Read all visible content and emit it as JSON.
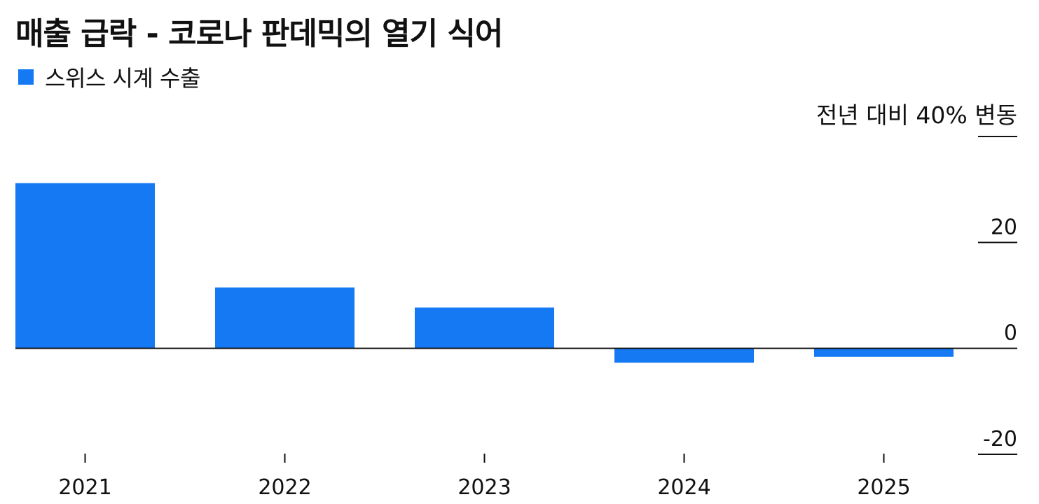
{
  "chart_data": {
    "type": "bar",
    "title": "매출 급락 - 코로나 판데믹의 열기 식어",
    "ylabel": "전년 대비 40% 변동",
    "categories": [
      "2021",
      "2022",
      "2023",
      "2024",
      "2025"
    ],
    "series": [
      {
        "name": "스위스 시계 수출",
        "values": [
          31.2,
          11.5,
          7.7,
          -2.7,
          -1.6
        ],
        "color": "#1479f2"
      }
    ],
    "y_ticks": [
      -20,
      0,
      20
    ],
    "y_tick_labels": [
      "-20",
      "0",
      "20"
    ],
    "ylim": [
      -20,
      40
    ],
    "grid": false,
    "legend_position": "top-left"
  }
}
